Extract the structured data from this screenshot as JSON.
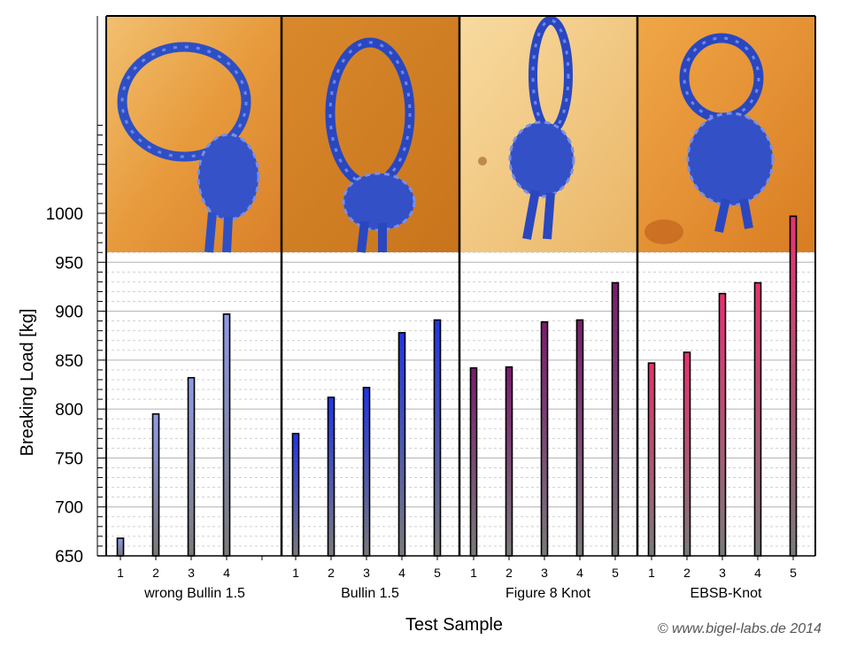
{
  "chart_data": {
    "type": "bar",
    "ylabel": "Breaking Load [kg]",
    "xlabel": "Test Sample",
    "ylim": [
      650,
      1000
    ],
    "yticks": [
      650,
      700,
      750,
      800,
      850,
      900,
      950,
      1000
    ],
    "groups": [
      {
        "name": "wrong Bullin 1.5",
        "samples": [
          "1",
          "2",
          "3",
          "4"
        ],
        "values": [
          668,
          795,
          832,
          897
        ],
        "color": "#8f9be8"
      },
      {
        "name": "Bullin 1.5",
        "samples": [
          "1",
          "2",
          "3",
          "4",
          "5"
        ],
        "values": [
          775,
          812,
          822,
          878,
          891
        ],
        "color": "#2035e6"
      },
      {
        "name": "Figure 8 Knot",
        "samples": [
          "1",
          "2",
          "3",
          "4",
          "5"
        ],
        "values": [
          842,
          843,
          889,
          891,
          929
        ],
        "color": "#7a1c6e"
      },
      {
        "name": "EBSB-Knot",
        "samples": [
          "1",
          "2",
          "3",
          "4",
          "5"
        ],
        "values": [
          847,
          858,
          918,
          929,
          997
        ],
        "color": "#e83072"
      }
    ],
    "grid": "horizontal dashed",
    "legend": "none"
  },
  "images": [
    {
      "name": "wrong-bullin-photo",
      "knot": "loose-loop"
    },
    {
      "name": "bullin-photo",
      "knot": "tall-loop"
    },
    {
      "name": "figure8-photo",
      "knot": "figure-eight"
    },
    {
      "name": "ebsb-photo",
      "knot": "double-knot"
    }
  ],
  "credit": "© www.bigel-labs.de 2014"
}
